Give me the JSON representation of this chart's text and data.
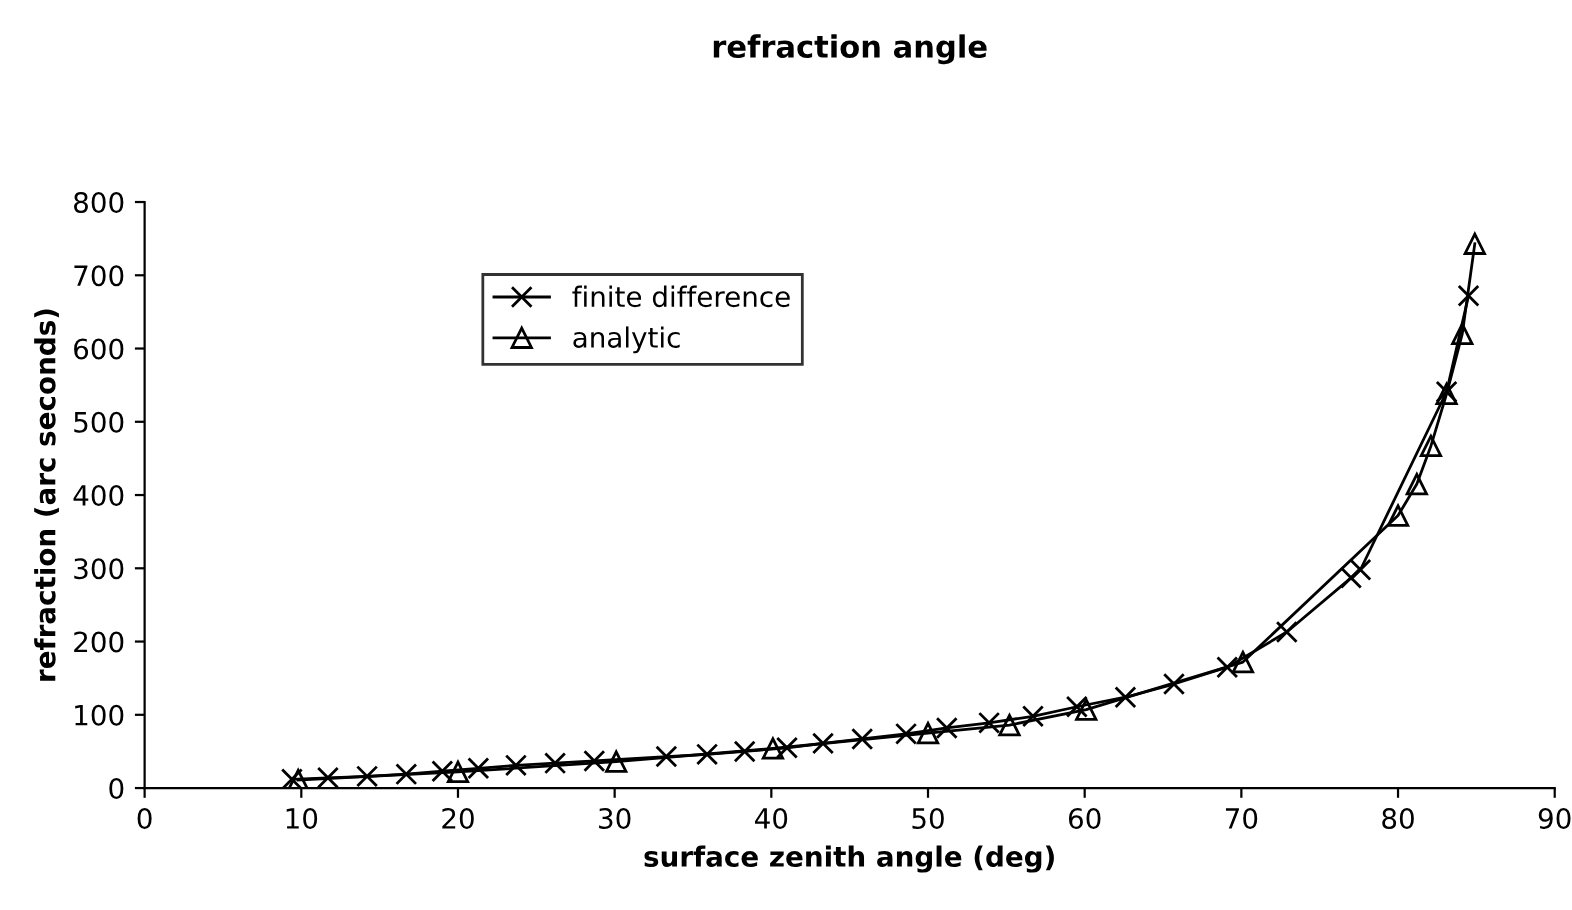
{
  "chart_data": {
    "type": "line",
    "title": "refraction angle",
    "xlabel": "surface zenith angle (deg)",
    "ylabel": "refraction (arc seconds)",
    "xlim": [
      0,
      90
    ],
    "xticks": [
      0,
      10,
      20,
      30,
      40,
      50,
      60,
      70,
      80,
      90
    ],
    "ylim": [
      0,
      800
    ],
    "yticks": [
      0,
      100,
      200,
      300,
      400,
      500,
      600,
      700,
      800
    ],
    "grid": false,
    "legend": "top left",
    "series": [
      {
        "name": "finite difference",
        "color": "#000000",
        "marker": "cross",
        "x": [
          9.4,
          11.7,
          14.2,
          16.7,
          19.0,
          21.3,
          23.7,
          26.2,
          28.7,
          33.3,
          35.9,
          38.3,
          41.0,
          43.3,
          45.8,
          48.6,
          51.2,
          53.9,
          56.7,
          59.5,
          62.6,
          65.7,
          69.1,
          72.9,
          77.0,
          77.6,
          83.1,
          84.5
        ],
        "values": [
          12,
          14,
          16,
          19,
          23,
          27,
          31,
          34,
          37,
          43,
          46,
          50,
          55,
          61,
          67,
          74,
          82,
          89,
          98,
          111,
          124,
          142,
          165,
          213,
          287,
          298,
          541,
          672
        ]
      },
      {
        "name": "analytic",
        "color": "#000000",
        "marker": "triangle",
        "x": [
          9.8,
          20.0,
          30.1,
          40.1,
          50.0,
          55.2,
          60.1,
          70.1,
          80.0,
          81.2,
          82.1,
          83.1,
          84.1,
          84.9
        ],
        "values": [
          11,
          22,
          36,
          54,
          75,
          86,
          107,
          172,
          372,
          415,
          467,
          538,
          620,
          743
        ]
      }
    ]
  }
}
